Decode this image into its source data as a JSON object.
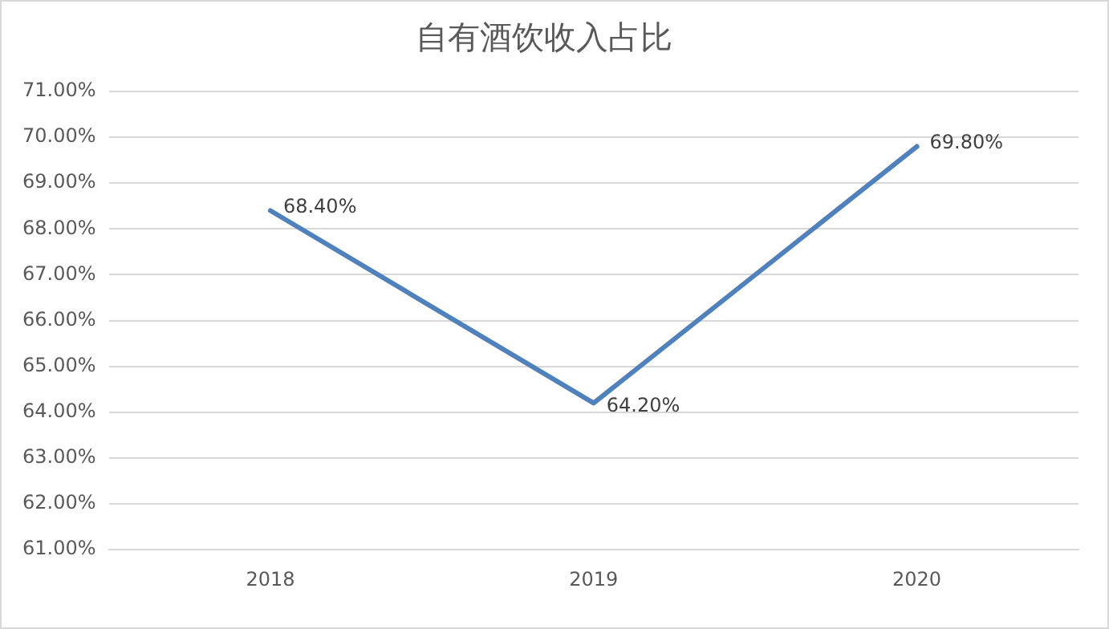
{
  "chart_data": {
    "type": "line",
    "title": "自有酒饮收入占比",
    "categories": [
      "2018",
      "2019",
      "2020"
    ],
    "series": [
      {
        "color": "#4f81bd",
        "values": [
          68.4,
          64.2,
          69.8
        ],
        "value_labels": [
          "68.40%",
          "64.20%",
          "69.80%"
        ]
      }
    ],
    "ylim": [
      61,
      71
    ],
    "yticks": [
      {
        "value": 61,
        "label": "61.00%"
      },
      {
        "value": 62,
        "label": "62.00%"
      },
      {
        "value": 63,
        "label": "63.00%"
      },
      {
        "value": 64,
        "label": "64.00%"
      },
      {
        "value": 65,
        "label": "65.00%"
      },
      {
        "value": 66,
        "label": "66.00%"
      },
      {
        "value": 67,
        "label": "67.00%"
      },
      {
        "value": 68,
        "label": "68.00%"
      },
      {
        "value": 69,
        "label": "69.00%"
      },
      {
        "value": 70,
        "label": "70.00%"
      },
      {
        "value": 71,
        "label": "71.00%"
      }
    ],
    "grid": "y",
    "legend": false,
    "marker": "none",
    "line_style": "solid"
  }
}
